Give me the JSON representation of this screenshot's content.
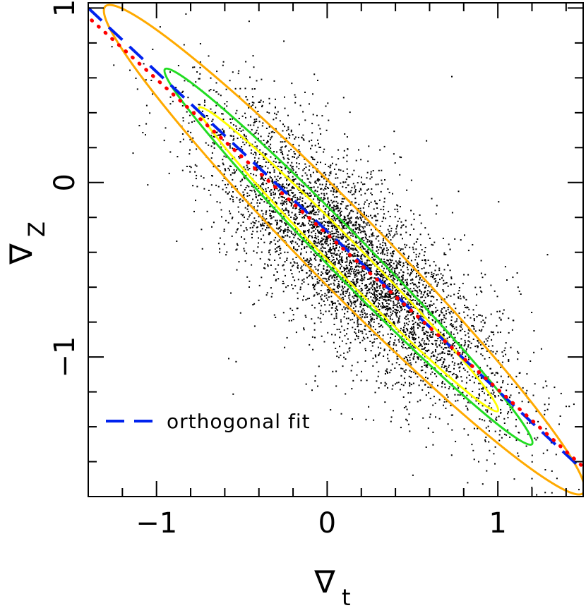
{
  "chart_data": {
    "type": "scatter",
    "title": "",
    "xlabel": {
      "symbol": "∇",
      "subscript": "t"
    },
    "ylabel": {
      "symbol": "∇",
      "subscript": "Z"
    },
    "xlim": [
      -1.4,
      1.5
    ],
    "ylim": [
      -1.8,
      1.03
    ],
    "x_ticks_major": [
      -1,
      0,
      1
    ],
    "x_tick_labels": [
      "−1",
      "0",
      "1"
    ],
    "y_ticks_major": [
      -1,
      0,
      1
    ],
    "y_tick_labels": [
      "−1",
      "0",
      "1"
    ],
    "minor_tick_step": 0.2,
    "grid": false,
    "scatter": {
      "description": "cloud of points along a negative-slope relation",
      "n_points": 5000,
      "color": "#000000",
      "center": [
        0.15,
        -0.45
      ],
      "trend_slope": -1.0,
      "x_spread_sd": 0.42,
      "perpendicular_sd": 0.17
    },
    "contours": [
      {
        "level": "inner",
        "color": "#ffff00",
        "center": [
          0.0,
          -0.29
        ],
        "endpoints": [
          [
            -0.75,
            0.43
          ],
          [
            1.0,
            -1.31
          ]
        ],
        "half_width": 0.09
      },
      {
        "level": "middle",
        "color": "#22dd22",
        "center": [
          0.12,
          -0.4
        ],
        "endpoints": [
          [
            -0.95,
            0.65
          ],
          [
            1.2,
            -1.5
          ]
        ],
        "half_width": 0.12
      },
      {
        "level": "outer",
        "color": "#ffaa00",
        "center": [
          0.08,
          -0.35
        ],
        "endpoints": [
          [
            -1.3,
            1.01
          ],
          [
            1.5,
            -1.78
          ]
        ],
        "half_width": 0.22
      }
    ],
    "lines": [
      {
        "name": "orthogonal fit",
        "style": "dashed",
        "color": "#0022ee",
        "x": [
          -1.4,
          1.5
        ],
        "y": [
          1.0,
          -1.65
        ]
      },
      {
        "name": "",
        "style": "dotted",
        "color": "#ff0000",
        "x": [
          -1.38,
          1.5
        ],
        "y": [
          0.93,
          -1.63
        ]
      }
    ],
    "legend": {
      "position": "bottom-left",
      "entries": [
        {
          "label": "orthogonal fit",
          "style": "dashed",
          "color": "#0022ee"
        }
      ]
    }
  }
}
